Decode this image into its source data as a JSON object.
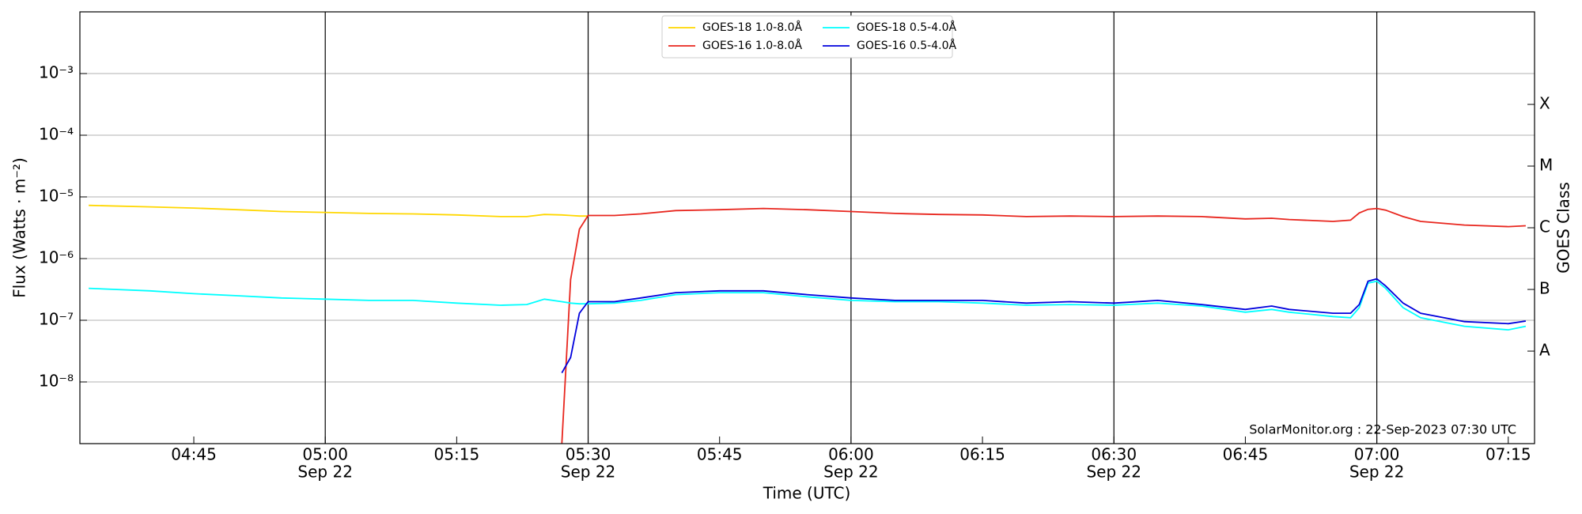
{
  "chart_data": {
    "type": "line",
    "y_label": "Flux (Watts · m⁻²)",
    "y2_label": "GOES Class",
    "x_label": "Time (UTC)",
    "annotation": "SolarMonitor.org : 22-Sep-2023 07:30 UTC",
    "log_scale": true,
    "grid": true,
    "legend": "upper center",
    "x": [
      "04:33",
      "04:40",
      "04:45",
      "04:50",
      "04:55",
      "05:00",
      "05:05",
      "05:10",
      "05:15",
      "05:20",
      "05:23",
      "05:25",
      "05:27",
      "05:28",
      "05:29",
      "05:30",
      "05:33",
      "05:36",
      "05:40",
      "05:45",
      "05:50",
      "05:55",
      "06:00",
      "06:05",
      "06:10",
      "06:15",
      "06:20",
      "06:25",
      "06:30",
      "06:35",
      "06:40",
      "06:45",
      "06:48",
      "06:50",
      "06:55",
      "06:57",
      "06:58",
      "06:59",
      "07:00",
      "07:01",
      "07:03",
      "07:05",
      "07:10",
      "07:15",
      "07:17"
    ],
    "xlim": [
      "04:32",
      "07:18"
    ],
    "xticks": [
      "04:45",
      "05:00",
      "05:15",
      "05:30",
      "05:45",
      "06:00",
      "06:15",
      "06:30",
      "06:45",
      "07:00",
      "07:15"
    ],
    "xtick_dates": [
      {
        "value": "05:00",
        "label": "Sep 22"
      },
      {
        "value": "05:30",
        "label": "Sep 22"
      },
      {
        "value": "06:00",
        "label": "Sep 22"
      },
      {
        "value": "06:30",
        "label": "Sep 22"
      },
      {
        "value": "07:00",
        "label": "Sep 22"
      }
    ],
    "ylim": [
      1e-09,
      0.01
    ],
    "yticks": [
      {
        "value": 1e-08,
        "label": "10⁻⁸"
      },
      {
        "value": 1e-07,
        "label": "10⁻⁷"
      },
      {
        "value": 1e-06,
        "label": "10⁻⁶"
      },
      {
        "value": 1e-05,
        "label": "10⁻⁵"
      },
      {
        "value": 0.0001,
        "label": "10⁻⁴"
      },
      {
        "value": 0.001,
        "label": "10⁻³"
      }
    ],
    "y2lim": [
      1e-09,
      0.01
    ],
    "y2ticks": [
      {
        "value": 3.16e-08,
        "label": "A"
      },
      {
        "value": 3.16e-07,
        "label": "B"
      },
      {
        "value": 3.16e-06,
        "label": "C"
      },
      {
        "value": 3.16e-05,
        "label": "M"
      },
      {
        "value": 0.000316,
        "label": "X"
      }
    ],
    "series": [
      {
        "name": "GOES-18 1.0-8.0Å",
        "color": "#ffd700",
        "values": [
          7.3e-06,
          6.9e-06,
          6.6e-06,
          6.2e-06,
          5.8e-06,
          5.6e-06,
          5.4e-06,
          5.3e-06,
          5.1e-06,
          4.8e-06,
          4.8e-06,
          5.2e-06,
          5.1e-06,
          5e-06,
          4.9e-06,
          4.9e-06,
          null,
          null,
          null,
          null,
          null,
          null,
          null,
          null,
          null,
          null,
          null,
          null,
          null,
          null,
          null,
          null,
          null,
          null,
          null,
          null,
          null,
          null,
          null,
          null,
          null,
          null,
          null,
          null,
          null
        ]
      },
      {
        "name": "GOES-16 1.0-8.0Å",
        "color": "#e8261e",
        "values": [
          null,
          null,
          null,
          null,
          null,
          null,
          null,
          null,
          null,
          null,
          null,
          null,
          1e-09,
          4.6e-07,
          3e-06,
          5e-06,
          5e-06,
          5.3e-06,
          6e-06,
          6.2e-06,
          6.5e-06,
          6.2e-06,
          5.8e-06,
          5.4e-06,
          5.2e-06,
          5.1e-06,
          4.8e-06,
          4.9e-06,
          4.8e-06,
          4.9e-06,
          4.8e-06,
          4.4e-06,
          4.5e-06,
          4.3e-06,
          4e-06,
          4.2e-06,
          5.5e-06,
          6.3e-06,
          6.5e-06,
          6.1e-06,
          4.8e-06,
          4e-06,
          3.5e-06,
          3.3e-06,
          3.4e-06
        ]
      },
      {
        "name": "GOES-18 0.5-4.0Å",
        "color": "#00ffff",
        "values": [
          3.3e-07,
          3e-07,
          2.7e-07,
          2.5e-07,
          2.3e-07,
          2.2e-07,
          2.1e-07,
          2.1e-07,
          1.9e-07,
          1.75e-07,
          1.8e-07,
          2.2e-07,
          2e-07,
          1.9e-07,
          1.85e-07,
          1.85e-07,
          1.9e-07,
          2.1e-07,
          2.6e-07,
          2.8e-07,
          2.8e-07,
          2.4e-07,
          2.1e-07,
          2e-07,
          2e-07,
          1.9e-07,
          1.75e-07,
          1.8e-07,
          1.75e-07,
          1.9e-07,
          1.7e-07,
          1.35e-07,
          1.5e-07,
          1.35e-07,
          1.15e-07,
          1.1e-07,
          1.6e-07,
          4e-07,
          4.3e-07,
          3.3e-07,
          1.6e-07,
          1.1e-07,
          8e-08,
          7e-08,
          8e-08
        ]
      },
      {
        "name": "GOES-16 0.5-4.0Å",
        "color": "#0000dd",
        "values": [
          null,
          null,
          null,
          null,
          null,
          null,
          null,
          null,
          null,
          null,
          null,
          null,
          1.4e-08,
          2.5e-08,
          1.3e-07,
          2e-07,
          2e-07,
          2.3e-07,
          2.8e-07,
          3e-07,
          3e-07,
          2.6e-07,
          2.3e-07,
          2.1e-07,
          2.1e-07,
          2.1e-07,
          1.9e-07,
          2e-07,
          1.9e-07,
          2.1e-07,
          1.8e-07,
          1.5e-07,
          1.7e-07,
          1.5e-07,
          1.3e-07,
          1.3e-07,
          1.8e-07,
          4.3e-07,
          4.7e-07,
          3.6e-07,
          1.9e-07,
          1.3e-07,
          9.5e-08,
          8.8e-08,
          9.7e-08
        ]
      }
    ]
  }
}
